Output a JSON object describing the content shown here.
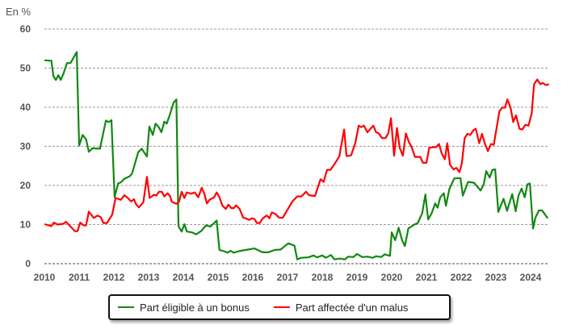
{
  "chart_data": {
    "type": "line",
    "unit_label": "En %",
    "ylim": [
      0,
      60
    ],
    "yticks": [
      "0",
      "10",
      "20",
      "30",
      "40",
      "50",
      "60"
    ],
    "ytick_values": [
      0,
      10,
      20,
      30,
      40,
      50,
      60
    ],
    "xlim": [
      2010,
      2024.55
    ],
    "xticks": [
      "2010",
      "2011",
      "2012",
      "2013",
      "2014",
      "2015",
      "2016",
      "2017",
      "2018",
      "2019",
      "2020",
      "2021",
      "2022",
      "2023",
      "2024"
    ],
    "xtick_values": [
      2010,
      2011,
      2012,
      2013,
      2014,
      2015,
      2016,
      2017,
      2018,
      2019,
      2020,
      2021,
      2022,
      2023,
      2024
    ],
    "grid": "horizontal dashed",
    "legend_position": "bottom",
    "series": [
      {
        "name": "Part éligible à un bonus",
        "color": "#118811",
        "points": [
          [
            2010.0,
            52
          ],
          [
            2010.2,
            51.9
          ],
          [
            2010.26,
            47.9
          ],
          [
            2010.33,
            47
          ],
          [
            2010.4,
            48.2
          ],
          [
            2010.47,
            47
          ],
          [
            2010.55,
            48.6
          ],
          [
            2010.65,
            51.3
          ],
          [
            2010.75,
            51.3
          ],
          [
            2010.93,
            54.1
          ],
          [
            2011.0,
            30.2
          ],
          [
            2011.1,
            32.9
          ],
          [
            2011.2,
            31.8
          ],
          [
            2011.28,
            28.6
          ],
          [
            2011.38,
            29.5
          ],
          [
            2011.6,
            29.4
          ],
          [
            2011.77,
            36.6
          ],
          [
            2011.85,
            36.2
          ],
          [
            2011.93,
            36.7
          ],
          [
            2012.02,
            17
          ],
          [
            2012.12,
            20.5
          ],
          [
            2012.2,
            20.8
          ],
          [
            2012.3,
            21.7
          ],
          [
            2012.45,
            22.3
          ],
          [
            2012.52,
            23
          ],
          [
            2012.6,
            25.4
          ],
          [
            2012.7,
            28.5
          ],
          [
            2012.8,
            29.4
          ],
          [
            2012.95,
            27.4
          ],
          [
            2013.02,
            35.1
          ],
          [
            2013.12,
            32.9
          ],
          [
            2013.2,
            35.8
          ],
          [
            2013.28,
            35.1
          ],
          [
            2013.37,
            33.6
          ],
          [
            2013.45,
            36.3
          ],
          [
            2013.52,
            35.8
          ],
          [
            2013.6,
            37.8
          ],
          [
            2013.72,
            41.2
          ],
          [
            2013.8,
            42
          ],
          [
            2013.86,
            9.6
          ],
          [
            2013.95,
            8.2
          ],
          [
            2014.03,
            10.1
          ],
          [
            2014.1,
            8.2
          ],
          [
            2014.25,
            8
          ],
          [
            2014.37,
            7.5
          ],
          [
            2014.52,
            8.4
          ],
          [
            2014.65,
            9.8
          ],
          [
            2014.78,
            9.5
          ],
          [
            2014.96,
            11
          ],
          [
            2015.04,
            3.5
          ],
          [
            2015.2,
            3.1
          ],
          [
            2015.28,
            2.8
          ],
          [
            2015.36,
            3.3
          ],
          [
            2015.45,
            2.8
          ],
          [
            2015.6,
            3.2
          ],
          [
            2015.8,
            3.5
          ],
          [
            2016.05,
            3.9
          ],
          [
            2016.28,
            2.9
          ],
          [
            2016.45,
            2.9
          ],
          [
            2016.63,
            3.5
          ],
          [
            2016.8,
            3.6
          ],
          [
            2017.02,
            5.2
          ],
          [
            2017.2,
            4.6
          ],
          [
            2017.28,
            1.1
          ],
          [
            2017.4,
            1.5
          ],
          [
            2017.6,
            1.6
          ],
          [
            2017.75,
            2.1
          ],
          [
            2017.85,
            1.6
          ],
          [
            2018.0,
            2.1
          ],
          [
            2018.1,
            1.5
          ],
          [
            2018.25,
            2.2
          ],
          [
            2018.35,
            1.1
          ],
          [
            2018.5,
            1.3
          ],
          [
            2018.65,
            1.1
          ],
          [
            2018.75,
            1.8
          ],
          [
            2018.9,
            1.7
          ],
          [
            2019.0,
            2.5
          ],
          [
            2019.15,
            1.7
          ],
          [
            2019.3,
            1.8
          ],
          [
            2019.45,
            1.5
          ],
          [
            2019.55,
            1.9
          ],
          [
            2019.7,
            1.7
          ],
          [
            2019.8,
            2.4
          ],
          [
            2019.95,
            2.0
          ],
          [
            2020.0,
            8
          ],
          [
            2020.1,
            6
          ],
          [
            2020.2,
            9.2
          ],
          [
            2020.3,
            6
          ],
          [
            2020.38,
            4.5
          ],
          [
            2020.48,
            9
          ],
          [
            2020.65,
            10
          ],
          [
            2020.75,
            10.4
          ],
          [
            2020.88,
            12.9
          ],
          [
            2020.97,
            17.7
          ],
          [
            2021.05,
            11.3
          ],
          [
            2021.15,
            12.9
          ],
          [
            2021.25,
            15.4
          ],
          [
            2021.32,
            14.3
          ],
          [
            2021.4,
            17
          ],
          [
            2021.5,
            18
          ],
          [
            2021.56,
            14.8
          ],
          [
            2021.66,
            19.1
          ],
          [
            2021.8,
            21.8
          ],
          [
            2021.98,
            21.9
          ],
          [
            2022.05,
            17.4
          ],
          [
            2022.2,
            20.9
          ],
          [
            2022.37,
            20.7
          ],
          [
            2022.56,
            18.7
          ],
          [
            2022.65,
            20.3
          ],
          [
            2022.72,
            23.7
          ],
          [
            2022.82,
            22
          ],
          [
            2022.9,
            24
          ],
          [
            2022.98,
            24.1
          ],
          [
            2023.07,
            13.2
          ],
          [
            2023.22,
            16.6
          ],
          [
            2023.32,
            13.5
          ],
          [
            2023.47,
            17.8
          ],
          [
            2023.57,
            13.4
          ],
          [
            2023.65,
            17.4
          ],
          [
            2023.74,
            19.2
          ],
          [
            2023.83,
            17
          ],
          [
            2023.91,
            20.3
          ],
          [
            2023.98,
            20.5
          ],
          [
            2024.07,
            9
          ],
          [
            2024.14,
            11.8
          ],
          [
            2024.24,
            13.6
          ],
          [
            2024.33,
            13.6
          ],
          [
            2024.49,
            11.6
          ]
        ]
      },
      {
        "name": "Part affectée d'un malus",
        "color": "#ff0000",
        "points": [
          [
            2010.0,
            10.1
          ],
          [
            2010.2,
            9.6
          ],
          [
            2010.27,
            10.5
          ],
          [
            2010.38,
            10
          ],
          [
            2010.55,
            10.2
          ],
          [
            2010.62,
            10.7
          ],
          [
            2010.73,
            9.7
          ],
          [
            2010.88,
            8.3
          ],
          [
            2010.95,
            8.3
          ],
          [
            2011.03,
            10.5
          ],
          [
            2011.13,
            9.8
          ],
          [
            2011.2,
            9.8
          ],
          [
            2011.28,
            13.3
          ],
          [
            2011.42,
            11.7
          ],
          [
            2011.53,
            12.3
          ],
          [
            2011.62,
            11.9
          ],
          [
            2011.7,
            10.4
          ],
          [
            2011.8,
            10.4
          ],
          [
            2011.95,
            12.5
          ],
          [
            2012.05,
            16.8
          ],
          [
            2012.2,
            16.3
          ],
          [
            2012.3,
            17.5
          ],
          [
            2012.4,
            16.8
          ],
          [
            2012.5,
            15.9
          ],
          [
            2012.58,
            16.5
          ],
          [
            2012.63,
            15.3
          ],
          [
            2012.72,
            14.4
          ],
          [
            2012.85,
            15.7
          ],
          [
            2012.95,
            22.2
          ],
          [
            2013.03,
            16.8
          ],
          [
            2013.15,
            17.6
          ],
          [
            2013.22,
            17.4
          ],
          [
            2013.3,
            18.4
          ],
          [
            2013.38,
            18.4
          ],
          [
            2013.45,
            17.2
          ],
          [
            2013.55,
            18
          ],
          [
            2013.62,
            17.2
          ],
          [
            2013.67,
            15.8
          ],
          [
            2013.8,
            15.3
          ],
          [
            2013.88,
            15.9
          ],
          [
            2013.95,
            18.4
          ],
          [
            2014.03,
            16.8
          ],
          [
            2014.1,
            18.2
          ],
          [
            2014.22,
            17.9
          ],
          [
            2014.33,
            18.2
          ],
          [
            2014.43,
            17
          ],
          [
            2014.53,
            19.4
          ],
          [
            2014.6,
            18
          ],
          [
            2014.68,
            15.4
          ],
          [
            2014.76,
            16.4
          ],
          [
            2014.88,
            16.9
          ],
          [
            2014.96,
            18.2
          ],
          [
            2015.04,
            17
          ],
          [
            2015.12,
            14.9
          ],
          [
            2015.22,
            14
          ],
          [
            2015.3,
            15.1
          ],
          [
            2015.38,
            14.2
          ],
          [
            2015.45,
            14.2
          ],
          [
            2015.52,
            14.9
          ],
          [
            2015.62,
            14
          ],
          [
            2015.72,
            11.8
          ],
          [
            2015.82,
            11.5
          ],
          [
            2015.9,
            11.2
          ],
          [
            2015.98,
            11.6
          ],
          [
            2016.05,
            11.4
          ],
          [
            2016.12,
            10.4
          ],
          [
            2016.2,
            10.4
          ],
          [
            2016.28,
            11.5
          ],
          [
            2016.4,
            12.3
          ],
          [
            2016.48,
            11.6
          ],
          [
            2016.55,
            13.1
          ],
          [
            2016.65,
            12.7
          ],
          [
            2016.75,
            11.8
          ],
          [
            2016.86,
            11.7
          ],
          [
            2017.0,
            13.8
          ],
          [
            2017.14,
            15.9
          ],
          [
            2017.28,
            17.2
          ],
          [
            2017.4,
            17.2
          ],
          [
            2017.53,
            18.4
          ],
          [
            2017.62,
            17.5
          ],
          [
            2017.79,
            17.3
          ],
          [
            2017.95,
            21.6
          ],
          [
            2018.04,
            20.9
          ],
          [
            2018.14,
            24
          ],
          [
            2018.24,
            24
          ],
          [
            2018.37,
            25.7
          ],
          [
            2018.49,
            27.4
          ],
          [
            2018.63,
            34.3
          ],
          [
            2018.7,
            27.5
          ],
          [
            2018.83,
            27.7
          ],
          [
            2018.95,
            30.8
          ],
          [
            2019.05,
            35.3
          ],
          [
            2019.12,
            34.9
          ],
          [
            2019.2,
            35.3
          ],
          [
            2019.3,
            33.6
          ],
          [
            2019.47,
            35.3
          ],
          [
            2019.55,
            33.6
          ],
          [
            2019.63,
            33.3
          ],
          [
            2019.72,
            32.1
          ],
          [
            2019.82,
            32.1
          ],
          [
            2019.9,
            33.3
          ],
          [
            2019.98,
            37.2
          ],
          [
            2020.07,
            27.6
          ],
          [
            2020.15,
            34.7
          ],
          [
            2020.23,
            29.6
          ],
          [
            2020.32,
            27.6
          ],
          [
            2020.41,
            33.3
          ],
          [
            2020.49,
            31.2
          ],
          [
            2020.57,
            29.9
          ],
          [
            2020.67,
            27.3
          ],
          [
            2020.82,
            27.3
          ],
          [
            2020.9,
            25.8
          ],
          [
            2021.0,
            25.8
          ],
          [
            2021.08,
            29.6
          ],
          [
            2021.2,
            29.8
          ],
          [
            2021.28,
            29.8
          ],
          [
            2021.36,
            30.6
          ],
          [
            2021.44,
            28.2
          ],
          [
            2021.53,
            26.7
          ],
          [
            2021.6,
            30.8
          ],
          [
            2021.68,
            25.3
          ],
          [
            2021.78,
            24.1
          ],
          [
            2021.86,
            24.5
          ],
          [
            2021.95,
            23.4
          ],
          [
            2022.02,
            25.7
          ],
          [
            2022.1,
            32.1
          ],
          [
            2022.18,
            33.2
          ],
          [
            2022.26,
            32.9
          ],
          [
            2022.36,
            34.2
          ],
          [
            2022.42,
            34.5
          ],
          [
            2022.52,
            30.8
          ],
          [
            2022.6,
            33.2
          ],
          [
            2022.68,
            30.8
          ],
          [
            2022.77,
            28.8
          ],
          [
            2022.86,
            30.6
          ],
          [
            2022.94,
            30.4
          ],
          [
            2023.1,
            38.9
          ],
          [
            2023.18,
            39.9
          ],
          [
            2023.26,
            39.9
          ],
          [
            2023.33,
            42
          ],
          [
            2023.42,
            39.9
          ],
          [
            2023.5,
            36.2
          ],
          [
            2023.58,
            37.9
          ],
          [
            2023.68,
            34.5
          ],
          [
            2023.76,
            34.3
          ],
          [
            2023.85,
            35.5
          ],
          [
            2023.94,
            35.3
          ],
          [
            2024.03,
            38.4
          ],
          [
            2024.1,
            45.9
          ],
          [
            2024.19,
            47.1
          ],
          [
            2024.28,
            45.9
          ],
          [
            2024.35,
            46.2
          ],
          [
            2024.44,
            45.7
          ],
          [
            2024.53,
            45.9
          ]
        ]
      }
    ]
  }
}
